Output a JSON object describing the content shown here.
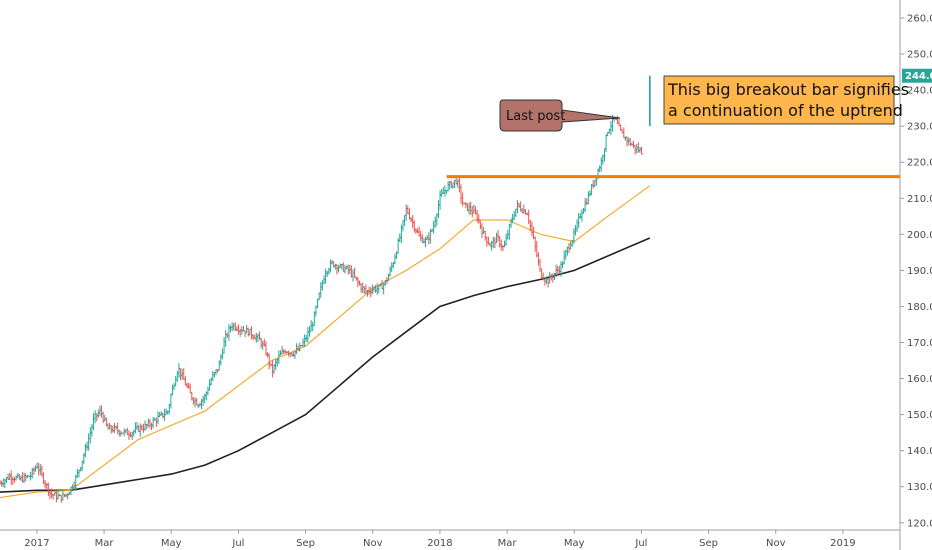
{
  "chart_data": {
    "type": "candlestick",
    "title": "",
    "xlabel": "",
    "ylabel": "",
    "ylim": [
      118,
      265
    ],
    "y_ticks": [
      "120.0",
      "130.0",
      "140.0",
      "150.0",
      "160.0",
      "170.0",
      "180.0",
      "190.0",
      "200.0",
      "210.0",
      "220.0",
      "230.0",
      "240.0",
      "250.0",
      "260.0"
    ],
    "x_ticks": [
      {
        "label": "2017",
        "month": 0
      },
      {
        "label": "Mar",
        "month": 2
      },
      {
        "label": "May",
        "month": 4
      },
      {
        "label": "Jul",
        "month": 6
      },
      {
        "label": "Sep",
        "month": 8
      },
      {
        "label": "Nov",
        "month": 10
      },
      {
        "label": "2018",
        "month": 12
      },
      {
        "label": "Mar",
        "month": 14
      },
      {
        "label": "May",
        "month": 16
      },
      {
        "label": "Jul",
        "month": 18
      },
      {
        "label": "Sep",
        "month": 20
      },
      {
        "label": "Nov",
        "month": 22
      },
      {
        "label": "2019",
        "month": 24
      }
    ],
    "x_range_months": [
      -1.1,
      25.7
    ],
    "price_anchors": [
      [
        -1.1,
        131
      ],
      [
        -0.8,
        133
      ],
      [
        -0.5,
        132
      ],
      [
        -0.2,
        133
      ],
      [
        0.0,
        136
      ],
      [
        0.2,
        132
      ],
      [
        0.4,
        128
      ],
      [
        0.7,
        127
      ],
      [
        0.9,
        128
      ],
      [
        1.1,
        131
      ],
      [
        1.3,
        136
      ],
      [
        1.5,
        142
      ],
      [
        1.7,
        149
      ],
      [
        1.9,
        151
      ],
      [
        2.1,
        146
      ],
      [
        2.3,
        146
      ],
      [
        2.6,
        145
      ],
      [
        2.8,
        145
      ],
      [
        3.0,
        146
      ],
      [
        3.3,
        147
      ],
      [
        3.6,
        149
      ],
      [
        3.9,
        151
      ],
      [
        4.0,
        156
      ],
      [
        4.2,
        163
      ],
      [
        4.4,
        159
      ],
      [
        4.6,
        155
      ],
      [
        4.8,
        153
      ],
      [
        5.0,
        155
      ],
      [
        5.2,
        160
      ],
      [
        5.4,
        163
      ],
      [
        5.6,
        171
      ],
      [
        5.8,
        175
      ],
      [
        6.0,
        174
      ],
      [
        6.3,
        173
      ],
      [
        6.6,
        171
      ],
      [
        6.8,
        168
      ],
      [
        7.0,
        162
      ],
      [
        7.2,
        166
      ],
      [
        7.4,
        168
      ],
      [
        7.6,
        167
      ],
      [
        7.8,
        168
      ],
      [
        8.0,
        171
      ],
      [
        8.2,
        175
      ],
      [
        8.4,
        183
      ],
      [
        8.6,
        190
      ],
      [
        8.8,
        192
      ],
      [
        9.0,
        191
      ],
      [
        9.3,
        190
      ],
      [
        9.6,
        186
      ],
      [
        9.8,
        184
      ],
      [
        10.0,
        185
      ],
      [
        10.2,
        185
      ],
      [
        10.4,
        187
      ],
      [
        10.6,
        192
      ],
      [
        10.8,
        199
      ],
      [
        11.0,
        207
      ],
      [
        11.2,
        203
      ],
      [
        11.4,
        199
      ],
      [
        11.6,
        198
      ],
      [
        11.8,
        202
      ],
      [
        12.0,
        210
      ],
      [
        12.2,
        213
      ],
      [
        12.5,
        215
      ],
      [
        12.7,
        208
      ],
      [
        12.9,
        207
      ],
      [
        13.1,
        205
      ],
      [
        13.3,
        200
      ],
      [
        13.5,
        197
      ],
      [
        13.7,
        199
      ],
      [
        13.9,
        196
      ],
      [
        14.1,
        203
      ],
      [
        14.3,
        208
      ],
      [
        14.6,
        206
      ],
      [
        14.8,
        198
      ],
      [
        15.0,
        189
      ],
      [
        15.2,
        187
      ],
      [
        15.4,
        189
      ],
      [
        15.6,
        191
      ],
      [
        15.8,
        196
      ],
      [
        16.0,
        200
      ],
      [
        16.2,
        206
      ],
      [
        16.4,
        210
      ],
      [
        16.6,
        215
      ],
      [
        16.8,
        220
      ],
      [
        17.0,
        229
      ],
      [
        17.2,
        232
      ],
      [
        17.4,
        228
      ],
      [
        17.6,
        226
      ],
      [
        17.8,
        224
      ],
      [
        18.0,
        223
      ]
    ],
    "breakout_bar": {
      "month": 18.25,
      "open": 230,
      "close": 244,
      "low": 230,
      "high": 244
    },
    "last_price": "244.0",
    "resistance_level": 216,
    "ma_short": [
      [
        -1.1,
        127
      ],
      [
        0.0,
        128.5
      ],
      [
        1.0,
        129
      ],
      [
        2.0,
        136
      ],
      [
        3.0,
        143
      ],
      [
        4.0,
        147
      ],
      [
        5.0,
        151
      ],
      [
        6.0,
        158
      ],
      [
        7.0,
        165
      ],
      [
        8.0,
        169
      ],
      [
        9.0,
        177
      ],
      [
        10.0,
        185
      ],
      [
        11.0,
        190
      ],
      [
        12.0,
        196
      ],
      [
        13.0,
        204
      ],
      [
        14.0,
        204
      ],
      [
        15.0,
        200
      ],
      [
        16.0,
        198
      ],
      [
        17.0,
        205
      ],
      [
        18.25,
        213.5
      ]
    ],
    "ma_long": [
      [
        -1.1,
        128.5
      ],
      [
        0.0,
        129
      ],
      [
        1.0,
        129
      ],
      [
        2.0,
        130.5
      ],
      [
        3.0,
        132
      ],
      [
        4.0,
        133.5
      ],
      [
        5.0,
        136
      ],
      [
        6.0,
        140
      ],
      [
        7.0,
        145
      ],
      [
        8.0,
        150
      ],
      [
        9.0,
        158
      ],
      [
        10.0,
        166
      ],
      [
        11.0,
        173
      ],
      [
        12.0,
        180
      ],
      [
        13.0,
        183
      ],
      [
        14.0,
        185.5
      ],
      [
        15.0,
        187.5
      ],
      [
        16.0,
        190
      ],
      [
        17.0,
        194
      ],
      [
        18.25,
        199
      ]
    ],
    "colors": {
      "up": "#26a69a",
      "down": "#ef5350",
      "ma_short": "#f5a623",
      "ma_long": "#222222",
      "resistance": "#f57c00",
      "price_label_bg": "#26a69a",
      "callout_bg": "#b3736b",
      "note_bg": "#ffb74d"
    },
    "annotations": {
      "callout": "Last post",
      "note_line1": "This big breakout bar signifies",
      "note_line2": "a continuation of the uptrend"
    },
    "grid": false,
    "legend": "none"
  }
}
